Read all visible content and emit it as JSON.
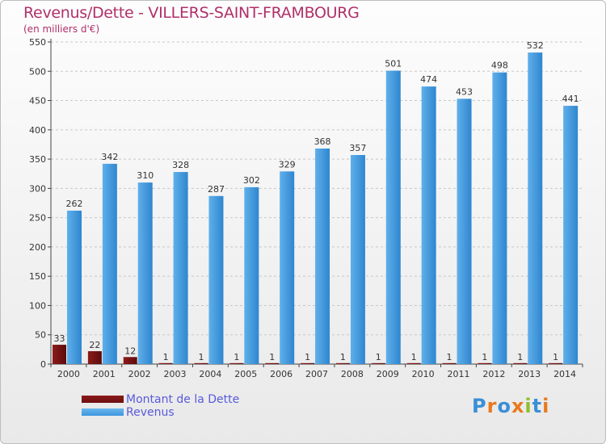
{
  "title": "Revenus/Dette - VILLERS-SAINT-FRAMBOURG",
  "subtitle": "(en milliers d'€)",
  "legend": {
    "debt_label": "Montant de la Dette",
    "revenue_label": "Revenus"
  },
  "logo": {
    "text": "Proxiti"
  },
  "colors": {
    "debt": "#6b0f0f",
    "revenue": "#3b95dc",
    "title": "#b0306a",
    "legend_text": "#5a5adb"
  },
  "chart_data": {
    "type": "bar",
    "title": "Revenus/Dette - VILLERS-SAINT-FRAMBOURG",
    "subtitle": "(en milliers d'€)",
    "categories": [
      "2000",
      "2001",
      "2002",
      "2003",
      "2004",
      "2005",
      "2006",
      "2007",
      "2008",
      "2009",
      "2010",
      "2011",
      "2012",
      "2013",
      "2014"
    ],
    "series": [
      {
        "name": "Montant de la Dette",
        "values": [
          33,
          22,
          12,
          1,
          1,
          1,
          1,
          1,
          1,
          1,
          1,
          1,
          1,
          1,
          1
        ]
      },
      {
        "name": "Revenus",
        "values": [
          262,
          342,
          310,
          328,
          287,
          302,
          329,
          368,
          357,
          501,
          474,
          453,
          498,
          532,
          441
        ]
      }
    ],
    "ylim": [
      0,
      550
    ],
    "yticks": [
      0,
      50,
      100,
      150,
      200,
      250,
      300,
      350,
      400,
      450,
      500,
      550
    ],
    "grid": true,
    "legend_position": "bottom-left"
  }
}
